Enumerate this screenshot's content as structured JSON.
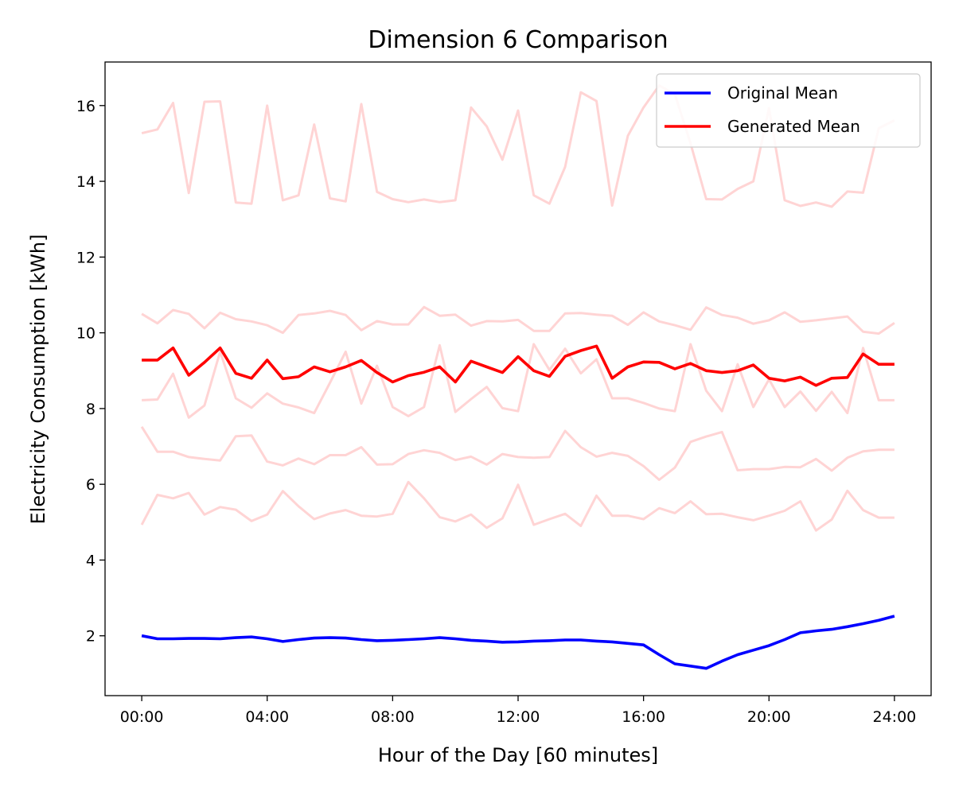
{
  "chart_data": {
    "type": "line",
    "title": "Dimension 6 Comparison",
    "xlabel": "Hour of the Day [60 minutes]",
    "ylabel": "Electricity Consumption [kWh]",
    "xlim": [
      -1.17,
      25.17
    ],
    "ylim": [
      0.42,
      17.15
    ],
    "x_ticks": [
      0,
      4,
      8,
      12,
      16,
      20,
      24
    ],
    "x_tick_labels": [
      "00:00",
      "04:00",
      "08:00",
      "12:00",
      "16:00",
      "20:00",
      "24:00"
    ],
    "y_ticks": [
      2,
      4,
      6,
      8,
      10,
      12,
      14,
      16
    ],
    "y_tick_labels": [
      "2",
      "4",
      "6",
      "8",
      "10",
      "12",
      "14",
      "16"
    ],
    "grid": false,
    "legend_position": "top-right",
    "colors": {
      "original": "#0000ff",
      "generated": "#ff0000",
      "samples": "#ffd4d4"
    },
    "x": [
      0.0,
      0.5,
      1.0,
      1.5,
      2.0,
      2.5,
      3.0,
      3.5,
      4.0,
      4.5,
      5.0,
      5.5,
      6.0,
      6.5,
      7.0,
      7.5,
      8.0,
      8.5,
      9.0,
      9.5,
      10.0,
      10.5,
      11.0,
      11.5,
      12.0,
      12.5,
      13.0,
      13.5,
      14.0,
      14.5,
      15.0,
      15.5,
      16.0,
      16.5,
      17.0,
      17.5,
      18.0,
      18.5,
      19.0,
      19.5,
      20.0,
      20.5,
      21.0,
      21.5,
      22.0,
      22.5,
      23.0,
      23.5,
      24.0
    ],
    "series": [
      {
        "name": "Original Mean",
        "role": "original",
        "x": [
          0,
          0.5,
          1,
          1.5,
          2,
          2.5,
          3,
          3.5,
          4,
          4.5,
          5,
          5.5,
          6,
          6.5,
          7,
          7.5,
          8,
          8.5,
          9,
          9.5,
          10,
          10.5,
          11,
          11.5,
          12,
          12.5,
          13,
          13.5,
          14,
          14.5,
          15,
          15.5,
          16,
          16.5,
          17,
          17.5,
          18,
          18.5,
          19,
          19.5,
          20,
          20.5,
          21,
          21.5,
          22,
          22.5,
          23,
          23.5,
          24
        ],
        "values": [
          2.0,
          1.92,
          1.92,
          1.93,
          1.93,
          1.92,
          1.95,
          1.97,
          1.92,
          1.85,
          1.9,
          1.94,
          1.95,
          1.94,
          1.9,
          1.87,
          1.88,
          1.9,
          1.92,
          1.95,
          1.92,
          1.88,
          1.86,
          1.83,
          1.84,
          1.86,
          1.87,
          1.89,
          1.89,
          1.86,
          1.84,
          1.8,
          1.76,
          1.5,
          1.26,
          1.2,
          1.14,
          1.33,
          1.5,
          1.62,
          1.74,
          1.9,
          2.08,
          2.13,
          2.17,
          2.24,
          2.32,
          2.41,
          2.52
        ]
      },
      {
        "name": "Generated Mean",
        "role": "generated",
        "x": [
          0,
          0.5,
          1,
          1.5,
          2,
          2.5,
          3,
          3.5,
          4,
          4.5,
          5,
          5.5,
          6,
          6.5,
          7,
          7.5,
          8,
          8.5,
          9,
          9.5,
          10,
          10.5,
          11,
          11.5,
          12,
          12.5,
          13,
          13.5,
          14,
          14.5,
          15,
          15.5,
          16,
          16.5,
          17,
          17.5,
          18,
          18.5,
          19,
          19.5,
          20,
          20.5,
          21,
          21.5,
          22,
          22.5,
          23,
          23.5,
          24
        ],
        "values": [
          9.28,
          9.28,
          9.6,
          8.88,
          9.22,
          9.6,
          8.93,
          8.8,
          9.28,
          8.79,
          8.84,
          9.1,
          8.97,
          9.1,
          9.27,
          8.95,
          8.7,
          8.87,
          8.96,
          9.1,
          8.7,
          9.25,
          9.1,
          8.95,
          9.37,
          9.0,
          8.85,
          9.38,
          9.53,
          9.65,
          8.8,
          9.1,
          9.23,
          9.22,
          9.05,
          9.19,
          9.0,
          8.95,
          9.0,
          9.15,
          8.8,
          8.73,
          8.83,
          8.61,
          8.8,
          8.82,
          9.44,
          9.17,
          9.17
        ]
      },
      {
        "role": "sample",
        "x": [
          0,
          0.5,
          1,
          1.5,
          2,
          2.5,
          3,
          3.5,
          4,
          4.5,
          5,
          5.5,
          6,
          6.5,
          7,
          7.5,
          8,
          8.5,
          9,
          9.5,
          10,
          10.5,
          11,
          11.5,
          12,
          12.5,
          13,
          13.5,
          14,
          14.5,
          15,
          15.5,
          16,
          16.5,
          17,
          17.5,
          18,
          18.5,
          19,
          19.5,
          20,
          20.5,
          21,
          21.5,
          22,
          22.5,
          23,
          23.5,
          24
        ],
        "values": [
          15.27,
          15.37,
          16.07,
          13.69,
          16.1,
          16.11,
          13.44,
          13.41,
          16.0,
          13.5,
          13.63,
          15.5,
          13.55,
          13.47,
          16.04,
          13.72,
          13.53,
          13.45,
          13.52,
          13.45,
          13.5,
          15.95,
          15.45,
          14.57,
          15.87,
          13.63,
          13.41,
          14.38,
          16.35,
          16.12,
          13.36,
          15.2,
          15.95,
          16.53,
          16.3,
          15.0,
          13.53,
          13.52,
          13.8,
          14.0,
          15.93,
          13.5,
          13.35,
          13.44,
          13.33,
          13.73,
          13.7,
          15.4,
          15.61
        ]
      },
      {
        "role": "sample",
        "x": [
          0,
          0.5,
          1,
          1.5,
          2,
          2.5,
          3,
          3.5,
          4,
          4.5,
          5,
          5.5,
          6,
          6.5,
          7,
          7.5,
          8,
          8.5,
          9,
          9.5,
          10,
          10.5,
          11,
          11.5,
          12,
          12.5,
          13,
          13.5,
          14,
          14.5,
          15,
          15.5,
          16,
          16.5,
          17,
          17.5,
          18,
          18.5,
          19,
          19.5,
          20,
          20.5,
          21,
          21.5,
          22,
          22.5,
          23,
          23.5,
          24
        ],
        "values": [
          10.5,
          10.25,
          10.6,
          10.5,
          10.12,
          10.53,
          10.36,
          10.3,
          10.2,
          10.0,
          10.47,
          10.51,
          10.58,
          10.47,
          10.07,
          10.31,
          10.22,
          10.22,
          10.68,
          10.45,
          10.48,
          10.19,
          10.31,
          10.3,
          10.34,
          10.05,
          10.05,
          10.51,
          10.52,
          10.48,
          10.45,
          10.21,
          10.54,
          10.3,
          10.2,
          10.08,
          10.67,
          10.47,
          10.4,
          10.24,
          10.33,
          10.54,
          10.29,
          10.33,
          10.38,
          10.43,
          10.03,
          9.98,
          10.26
        ]
      },
      {
        "role": "sample",
        "x": [
          0,
          0.5,
          1,
          1.5,
          2,
          2.5,
          3,
          3.5,
          4,
          4.5,
          5,
          5.5,
          6,
          6.5,
          7,
          7.5,
          8,
          8.5,
          9,
          9.5,
          10,
          10.5,
          11,
          11.5,
          12,
          12.5,
          13,
          13.5,
          14,
          14.5,
          15,
          15.5,
          16,
          16.5,
          17,
          17.5,
          18,
          18.5,
          19,
          19.5,
          20,
          20.5,
          21,
          21.5,
          22,
          22.5,
          23,
          23.5,
          24
        ],
        "values": [
          8.22,
          8.24,
          8.92,
          7.76,
          8.08,
          9.5,
          8.27,
          8.02,
          8.4,
          8.13,
          8.03,
          7.88,
          8.68,
          9.5,
          8.13,
          9.13,
          8.04,
          7.8,
          8.04,
          9.67,
          7.91,
          8.25,
          8.57,
          8.01,
          7.93,
          9.7,
          9.02,
          9.58,
          8.93,
          9.3,
          8.27,
          8.27,
          8.15,
          8.0,
          7.93,
          9.7,
          8.47,
          7.93,
          9.17,
          8.04,
          8.77,
          8.04,
          8.45,
          7.94,
          8.44,
          7.88,
          9.6,
          8.22,
          8.22
        ]
      },
      {
        "role": "sample",
        "x": [
          0,
          0.5,
          1,
          1.5,
          2,
          2.5,
          3,
          3.5,
          4,
          4.5,
          5,
          5.5,
          6,
          6.5,
          7,
          7.5,
          8,
          8.5,
          9,
          9.5,
          10,
          10.5,
          11,
          11.5,
          12,
          12.5,
          13,
          13.5,
          14,
          14.5,
          15,
          15.5,
          16,
          16.5,
          17,
          17.5,
          18,
          18.5,
          19,
          19.5,
          20,
          20.5,
          21,
          21.5,
          22,
          22.5,
          23,
          23.5,
          24
        ],
        "values": [
          7.52,
          6.86,
          6.86,
          6.72,
          6.67,
          6.63,
          7.27,
          7.29,
          6.6,
          6.5,
          6.68,
          6.53,
          6.77,
          6.77,
          6.98,
          6.52,
          6.53,
          6.8,
          6.9,
          6.83,
          6.64,
          6.73,
          6.52,
          6.8,
          6.72,
          6.7,
          6.72,
          7.41,
          6.98,
          6.73,
          6.83,
          6.75,
          6.48,
          6.12,
          6.44,
          7.12,
          7.26,
          7.38,
          6.37,
          6.4,
          6.4,
          6.46,
          6.45,
          6.67,
          6.36,
          6.7,
          6.87,
          6.91,
          6.91
        ]
      },
      {
        "role": "sample",
        "x": [
          0,
          0.5,
          1,
          1.5,
          2,
          2.5,
          3,
          3.5,
          4,
          4.5,
          5,
          5.5,
          6,
          6.5,
          7,
          7.5,
          8,
          8.5,
          9,
          9.5,
          10,
          10.5,
          11,
          11.5,
          12,
          12.5,
          13,
          13.5,
          14,
          14.5,
          15,
          15.5,
          16,
          16.5,
          17,
          17.5,
          18,
          18.5,
          19,
          19.5,
          20,
          20.5,
          21,
          21.5,
          22,
          22.5,
          23,
          23.5,
          24
        ],
        "values": [
          4.93,
          5.72,
          5.63,
          5.77,
          5.2,
          5.4,
          5.33,
          5.03,
          5.2,
          5.82,
          5.42,
          5.08,
          5.23,
          5.32,
          5.17,
          5.15,
          5.22,
          6.06,
          5.63,
          5.13,
          5.02,
          5.2,
          4.85,
          5.1,
          5.99,
          4.93,
          5.08,
          5.22,
          4.9,
          5.7,
          5.17,
          5.17,
          5.08,
          5.37,
          5.24,
          5.55,
          5.21,
          5.22,
          5.13,
          5.05,
          5.17,
          5.3,
          5.55,
          4.78,
          5.07,
          5.83,
          5.32,
          5.12,
          5.12
        ]
      }
    ]
  }
}
